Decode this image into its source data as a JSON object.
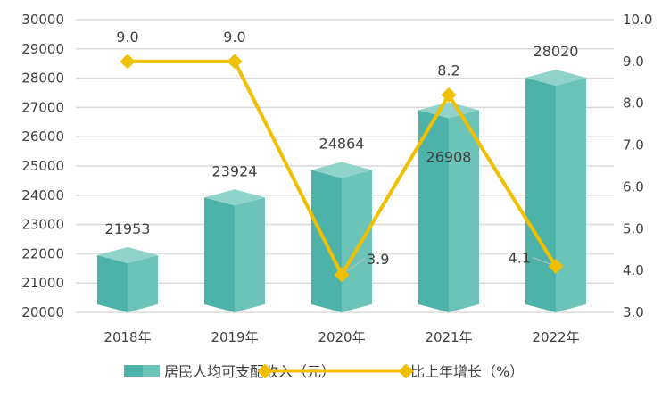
{
  "chart_data": {
    "type": "bar+line",
    "categories": [
      "2018年",
      "2019年",
      "2020年",
      "2021年",
      "2022年"
    ],
    "series": [
      {
        "name": "居民人均可支配收入（元）",
        "type": "bar",
        "axis": "left",
        "values": [
          21953,
          23924,
          24864,
          26908,
          28020
        ],
        "labels": [
          "21953",
          "23924",
          "24864",
          "26908",
          "28020"
        ]
      },
      {
        "name": "比上年增长（%）",
        "type": "line",
        "axis": "right",
        "values": [
          9.0,
          9.0,
          3.9,
          8.2,
          4.1
        ],
        "labels": [
          "9.0",
          "9.0",
          "3.9",
          "8.2",
          "4.1"
        ]
      }
    ],
    "left_axis": {
      "ylim": [
        20000,
        30000
      ],
      "ticks": [
        "20000",
        "21000",
        "22000",
        "23000",
        "24000",
        "25000",
        "26000",
        "27000",
        "28000",
        "29000",
        "30000"
      ]
    },
    "right_axis": {
      "ylim": [
        3.0,
        10.0
      ],
      "ticks": [
        "3.0",
        "4.0",
        "5.0",
        "6.0",
        "7.0",
        "8.0",
        "9.0",
        "10.0"
      ]
    },
    "grid": true,
    "legend_position": "bottom",
    "colors": {
      "bar_front": "#4db3a8",
      "bar_side": "#6cc4b9",
      "bar_top": "#8fd3ca",
      "line": "#f0c000",
      "grid": "#d9d9d9"
    }
  }
}
